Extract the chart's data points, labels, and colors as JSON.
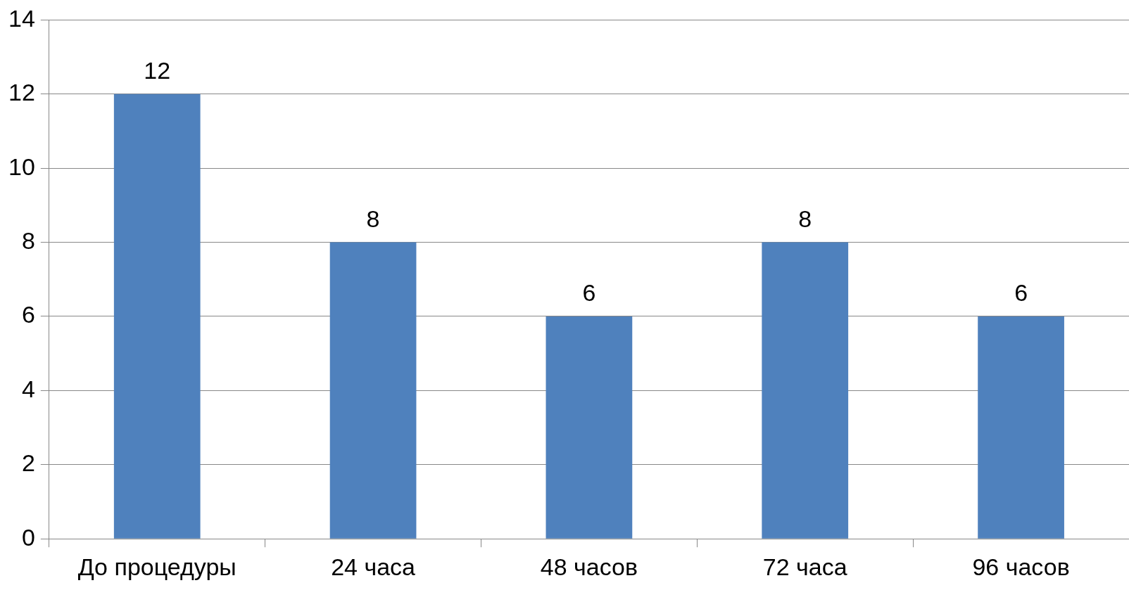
{
  "chart_data": {
    "type": "bar",
    "categories": [
      "До процедуры",
      "24 часа",
      "48 часов",
      "72 часа",
      "96 часов"
    ],
    "values": [
      12,
      8,
      6,
      8,
      6
    ],
    "color": "#4f81bd",
    "ylim": [
      0,
      14
    ],
    "yticks": [
      0,
      2,
      4,
      6,
      8,
      10,
      12,
      14
    ],
    "grid": "y",
    "data_labels": true,
    "legend": false
  }
}
